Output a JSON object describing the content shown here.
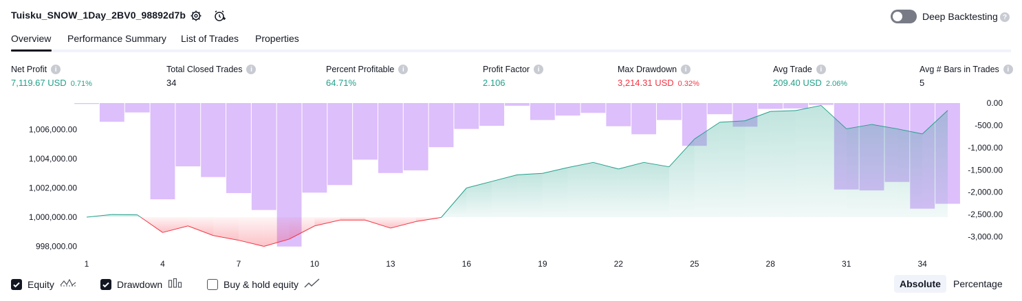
{
  "header": {
    "title": "Tuisku_SNOW_1Day_2BV0_98892d7b",
    "deep_backtesting_label": "Deep Backtesting",
    "deep_backtesting_on": false
  },
  "tabs": [
    {
      "label": "Overview",
      "active": true
    },
    {
      "label": "Performance Summary",
      "active": false
    },
    {
      "label": "List of Trades",
      "active": false
    },
    {
      "label": "Properties",
      "active": false
    }
  ],
  "metrics": {
    "net_profit": {
      "label": "Net Profit",
      "value": "7,119.67 USD",
      "pct": "0.71%"
    },
    "total_closed_trades": {
      "label": "Total Closed Trades",
      "value": "34"
    },
    "percent_profitable": {
      "label": "Percent Profitable",
      "value": "64.71%"
    },
    "profit_factor": {
      "label": "Profit Factor",
      "value": "2.106"
    },
    "max_drawdown": {
      "label": "Max Drawdown",
      "value": "3,214.31 USD",
      "pct": "0.32%"
    },
    "avg_trade": {
      "label": "Avg Trade",
      "value": "209.40 USD",
      "pct": "2.06%"
    },
    "avg_bars": {
      "label": "Avg # Bars in Trades",
      "value": "5"
    }
  },
  "legend": {
    "equity": {
      "label": "Equity",
      "checked": true
    },
    "drawdown": {
      "label": "Drawdown",
      "checked": true
    },
    "buy_hold": {
      "label": "Buy & hold equity",
      "checked": false
    }
  },
  "scale_toggle": {
    "absolute": "Absolute",
    "percentage": "Percentage",
    "selected": "absolute"
  },
  "colors": {
    "positive": "#22a08a",
    "negative": "#f23645",
    "equity_line_up": "#22a08a",
    "equity_line_down": "#f23645",
    "drawdown_bar": "#d9b8fb",
    "text": "#131722"
  },
  "chart_data": {
    "type": "line",
    "left_axis": {
      "ticks": [
        998000,
        1000000,
        1002000,
        1004000,
        1006000
      ],
      "tick_labels": [
        "998,000.00",
        "1,000,000.00",
        "1,002,000.00",
        "1,004,000.00",
        "1,006,000.00"
      ],
      "range": [
        997600,
        1007700
      ]
    },
    "right_axis": {
      "ticks": [
        0,
        -500,
        -1000,
        -1500,
        -2000,
        -2500,
        -3000
      ],
      "tick_labels": [
        "0.00",
        "-500.00",
        "-1,000.00",
        "-1,500.00",
        "-2,000.00",
        "-2,500.00",
        "-3,000.00"
      ],
      "range": [
        -3250,
        100
      ]
    },
    "x_ticks": [
      1,
      4,
      7,
      10,
      13,
      16,
      19,
      22,
      25,
      28,
      31,
      34
    ],
    "x_range": [
      1,
      35
    ],
    "baseline": 1000000,
    "series": [
      {
        "type": "area",
        "axis": "left",
        "x": [
          1,
          2,
          3,
          4,
          5,
          6,
          7,
          8,
          9,
          10,
          11,
          12,
          13,
          14,
          15,
          16,
          17,
          18,
          19,
          20,
          21,
          22,
          23,
          24,
          25,
          26,
          27,
          28,
          29,
          30,
          31,
          32,
          33,
          34,
          35
        ],
        "values": [
          1000000,
          1000180,
          1000160,
          998950,
          999400,
          998740,
          998420,
          998000,
          998500,
          999400,
          999800,
          999800,
          999250,
          999700,
          999980,
          1002000,
          1002450,
          1002900,
          1003000,
          1003400,
          1003750,
          1003300,
          1003750,
          1003450,
          1005350,
          1006500,
          1006600,
          1007240,
          1007300,
          1007650,
          1006050,
          1006350,
          1006050,
          1005700,
          1007310
        ]
      },
      {
        "type": "bar",
        "axis": "right",
        "x": [
          1,
          2,
          3,
          4,
          5,
          6,
          7,
          8,
          9,
          10,
          11,
          12,
          13,
          14,
          15,
          16,
          17,
          18,
          19,
          20,
          21,
          22,
          23,
          24,
          25,
          26,
          27,
          28,
          29,
          30,
          31,
          32,
          33,
          34,
          35
        ],
        "values": [
          -20,
          -420,
          -210,
          -2160,
          -1420,
          -1660,
          -2020,
          -2400,
          -3220,
          -2010,
          -1840,
          -1270,
          -1570,
          -1510,
          -990,
          -580,
          -510,
          -60,
          -380,
          -280,
          -220,
          -520,
          -700,
          -380,
          -960,
          -250,
          -530,
          -130,
          -120,
          -40,
          -1940,
          -1960,
          -1770,
          -2370,
          -2260
        ]
      }
    ]
  }
}
